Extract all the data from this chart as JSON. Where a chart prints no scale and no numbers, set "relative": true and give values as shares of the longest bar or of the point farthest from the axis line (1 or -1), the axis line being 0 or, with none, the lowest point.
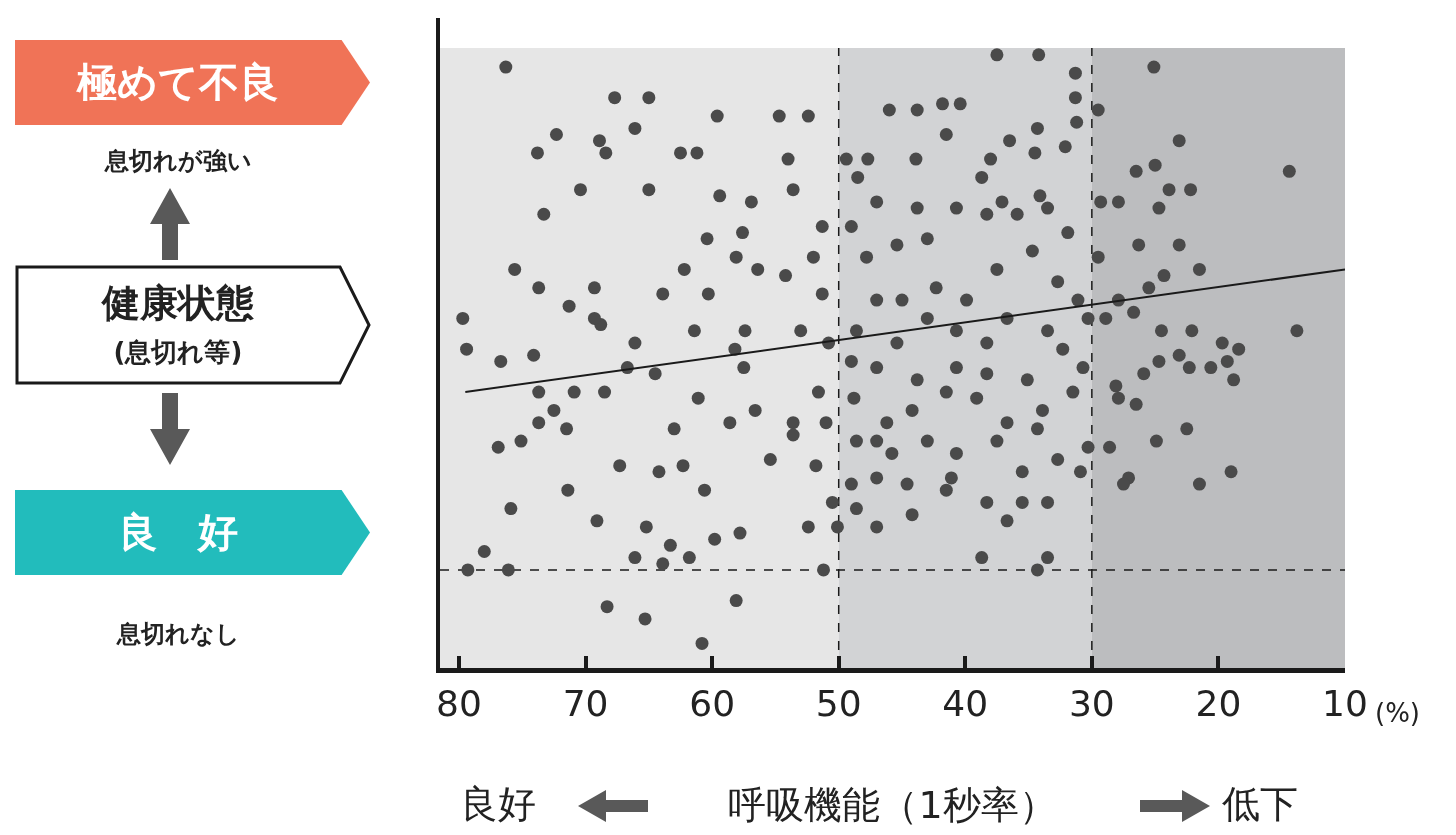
{
  "chart_data": {
    "type": "scatter",
    "xlabel": "呼吸機能（1秒率）",
    "ylabel": "健康状態",
    "annotations": [
      "極めて不良",
      "息切れが強い",
      "(息切れ等)",
      "良　好",
      "息切れなし",
      "良好",
      "低下",
      "(%)"
    ],
    "relative": true,
    "xlim": [
      81.5,
      10
    ],
    "xticks": [
      80,
      70,
      60,
      50,
      40,
      30,
      20,
      10
    ],
    "grid": false,
    "bands": [
      {
        "axis": "x",
        "from": 81.5,
        "to": 50,
        "color": "#e6e6e6"
      },
      {
        "axis": "x",
        "from": 50,
        "to": 30,
        "color": "#d2d3d5"
      },
      {
        "axis": "x",
        "from": 30,
        "to": 10,
        "color": "#bcbdbf"
      }
    ],
    "ref_lines": [
      {
        "axis": "x",
        "value": 50,
        "color": "#1a1a1a",
        "line_style": "dashed"
      },
      {
        "axis": "x",
        "value": 30,
        "color": "#1a1a1a",
        "line_style": "dashed"
      },
      {
        "axis": "y",
        "value": 0.16,
        "color": "#1a1a1a",
        "line_style": "dashed"
      }
    ],
    "series": [
      {
        "color": "#4a4a4a",
        "marker": "circle",
        "x": [
          76.3,
          67.7,
          65.0,
          72.3,
          73.8,
          68.9,
          70.4,
          68.4,
          62.5,
          66.1,
          59.6,
          54.7,
          52.4,
          54.0,
          61.2,
          65.0,
          59.4,
          57.6,
          60.4,
          58.1,
          56.9,
          52.0,
          53.6,
          51.3,
          49.0,
          73.3,
          79.7,
          79.4,
          75.6,
          73.7,
          69.3,
          68.8,
          63.9,
          60.3,
          56.4,
          54.2,
          51.3,
          50.8,
          53.0,
          57.4,
          58.2,
          61.4,
          66.1,
          69.3,
          71.3,
          74.1,
          76.7,
          73.7,
          72.5,
          68.5,
          64.5,
          61.1,
          57.5,
          56.6,
          53.6,
          51.0,
          51.6,
          75.1,
          73.7,
          75.9,
          78.0,
          79.3,
          76.1,
          71.4,
          69.1,
          67.3,
          65.2,
          64.2,
          62.3,
          60.6,
          59.8,
          57.8,
          55.4,
          53.6,
          51.8,
          52.4,
          50.5,
          68.3,
          65.3,
          60.8,
          58.1,
          50.1,
          51.2,
          66.1,
          61.8,
          63.3,
          63.9,
          70.9,
          58.6,
          63.0,
          66.7,
          62.2,
          76.9,
          71.5,
          37.5,
          34.2,
          31.3,
          31.3,
          41.8,
          40.4,
          29.5,
          31.2,
          34.3,
          32.1,
          34.5,
          41.5,
          46.0,
          43.8,
          47.7,
          43.9,
          38.7,
          36.5,
          38.0,
          37.1,
          34.1,
          49.4,
          48.5,
          47.0,
          43.8,
          40.7,
          38.3,
          35.9,
          33.5,
          31.9,
          43.0,
          45.4,
          47.8,
          47.0,
          45.0,
          42.3,
          39.9,
          37.5,
          34.7,
          32.7,
          31.1,
          30.3,
          33.5,
          36.7,
          38.3,
          40.7,
          43.0,
          45.4,
          48.6,
          49.0,
          47.0,
          43.8,
          40.7,
          38.3,
          35.1,
          32.3,
          30.7,
          31.5,
          33.9,
          36.7,
          39.1,
          41.5,
          44.2,
          46.2,
          48.8,
          48.6,
          45.8,
          43.0,
          40.7,
          37.5,
          34.3,
          32.7,
          30.3,
          35.5,
          38.3,
          41.5,
          44.6,
          47.0,
          48.6,
          47.0,
          44.2,
          41.1,
          36.7,
          33.5,
          35.5,
          30.9,
          38.7,
          34.3,
          33.5,
          49.0,
          47.0,
          25.1,
          23.1,
          25.0,
          26.5,
          23.9,
          22.2,
          29.3,
          27.9,
          24.7,
          26.3,
          23.1,
          21.5,
          24.3,
          25.5,
          27.9,
          26.7,
          28.9,
          24.5,
          22.1,
          13.8,
          19.7,
          18.4,
          19.3,
          20.6,
          23.1,
          22.3,
          24.7,
          18.8,
          28.1,
          25.9,
          27.9,
          26.5,
          28.6,
          27.1,
          27.5,
          24.9,
          22.5,
          19.0,
          21.5,
          14.4,
          29.5
        ],
        "values": [
          0.98,
          0.93,
          0.93,
          0.87,
          0.84,
          0.86,
          0.78,
          0.84,
          0.84,
          0.88,
          0.9,
          0.9,
          0.9,
          0.83,
          0.84,
          0.78,
          0.77,
          0.71,
          0.7,
          0.67,
          0.76,
          0.67,
          0.78,
          0.72,
          0.72,
          0.74,
          0.57,
          0.52,
          0.65,
          0.62,
          0.62,
          0.56,
          0.61,
          0.61,
          0.65,
          0.64,
          0.61,
          0.53,
          0.55,
          0.55,
          0.52,
          0.55,
          0.53,
          0.57,
          0.59,
          0.51,
          0.5,
          0.45,
          0.42,
          0.45,
          0.48,
          0.44,
          0.49,
          0.42,
          0.4,
          0.4,
          0.45,
          0.37,
          0.4,
          0.26,
          0.19,
          0.16,
          0.16,
          0.29,
          0.24,
          0.33,
          0.23,
          0.32,
          0.33,
          0.29,
          0.21,
          0.22,
          0.34,
          0.38,
          0.33,
          0.23,
          0.27,
          0.1,
          0.08,
          0.04,
          0.11,
          0.23,
          0.16,
          0.18,
          0.18,
          0.2,
          0.17,
          0.45,
          0.4,
          0.39,
          0.49,
          0.65,
          0.36,
          0.39,
          1.0,
          1.0,
          0.97,
          0.93,
          0.92,
          0.92,
          0.91,
          0.89,
          0.88,
          0.85,
          0.84,
          0.87,
          0.91,
          0.91,
          0.83,
          0.83,
          0.8,
          0.86,
          0.83,
          0.76,
          0.77,
          0.83,
          0.8,
          0.76,
          0.75,
          0.75,
          0.74,
          0.74,
          0.75,
          0.71,
          0.7,
          0.69,
          0.67,
          0.6,
          0.6,
          0.62,
          0.6,
          0.65,
          0.68,
          0.63,
          0.6,
          0.57,
          0.55,
          0.57,
          0.53,
          0.55,
          0.57,
          0.53,
          0.55,
          0.5,
          0.49,
          0.47,
          0.49,
          0.48,
          0.47,
          0.52,
          0.49,
          0.45,
          0.42,
          0.4,
          0.44,
          0.45,
          0.42,
          0.4,
          0.44,
          0.37,
          0.35,
          0.37,
          0.35,
          0.37,
          0.39,
          0.34,
          0.36,
          0.32,
          0.27,
          0.29,
          0.3,
          0.31,
          0.26,
          0.23,
          0.25,
          0.31,
          0.24,
          0.27,
          0.27,
          0.32,
          0.18,
          0.16,
          0.18,
          0.3,
          0.37,
          0.98,
          0.86,
          0.82,
          0.81,
          0.78,
          0.78,
          0.76,
          0.76,
          0.75,
          0.69,
          0.69,
          0.65,
          0.64,
          0.62,
          0.6,
          0.58,
          0.57,
          0.55,
          0.55,
          0.55,
          0.53,
          0.52,
          0.5,
          0.49,
          0.51,
          0.49,
          0.5,
          0.47,
          0.46,
          0.48,
          0.44,
          0.43,
          0.36,
          0.31,
          0.3,
          0.37,
          0.39,
          0.32,
          0.3,
          0.81,
          0.67
        ]
      },
      {
        "type": "line",
        "color": "#1a1a1a",
        "line_style": "solid",
        "x": [
          79.5,
          10
        ],
        "values": [
          0.45,
          0.65
        ]
      }
    ]
  }
}
